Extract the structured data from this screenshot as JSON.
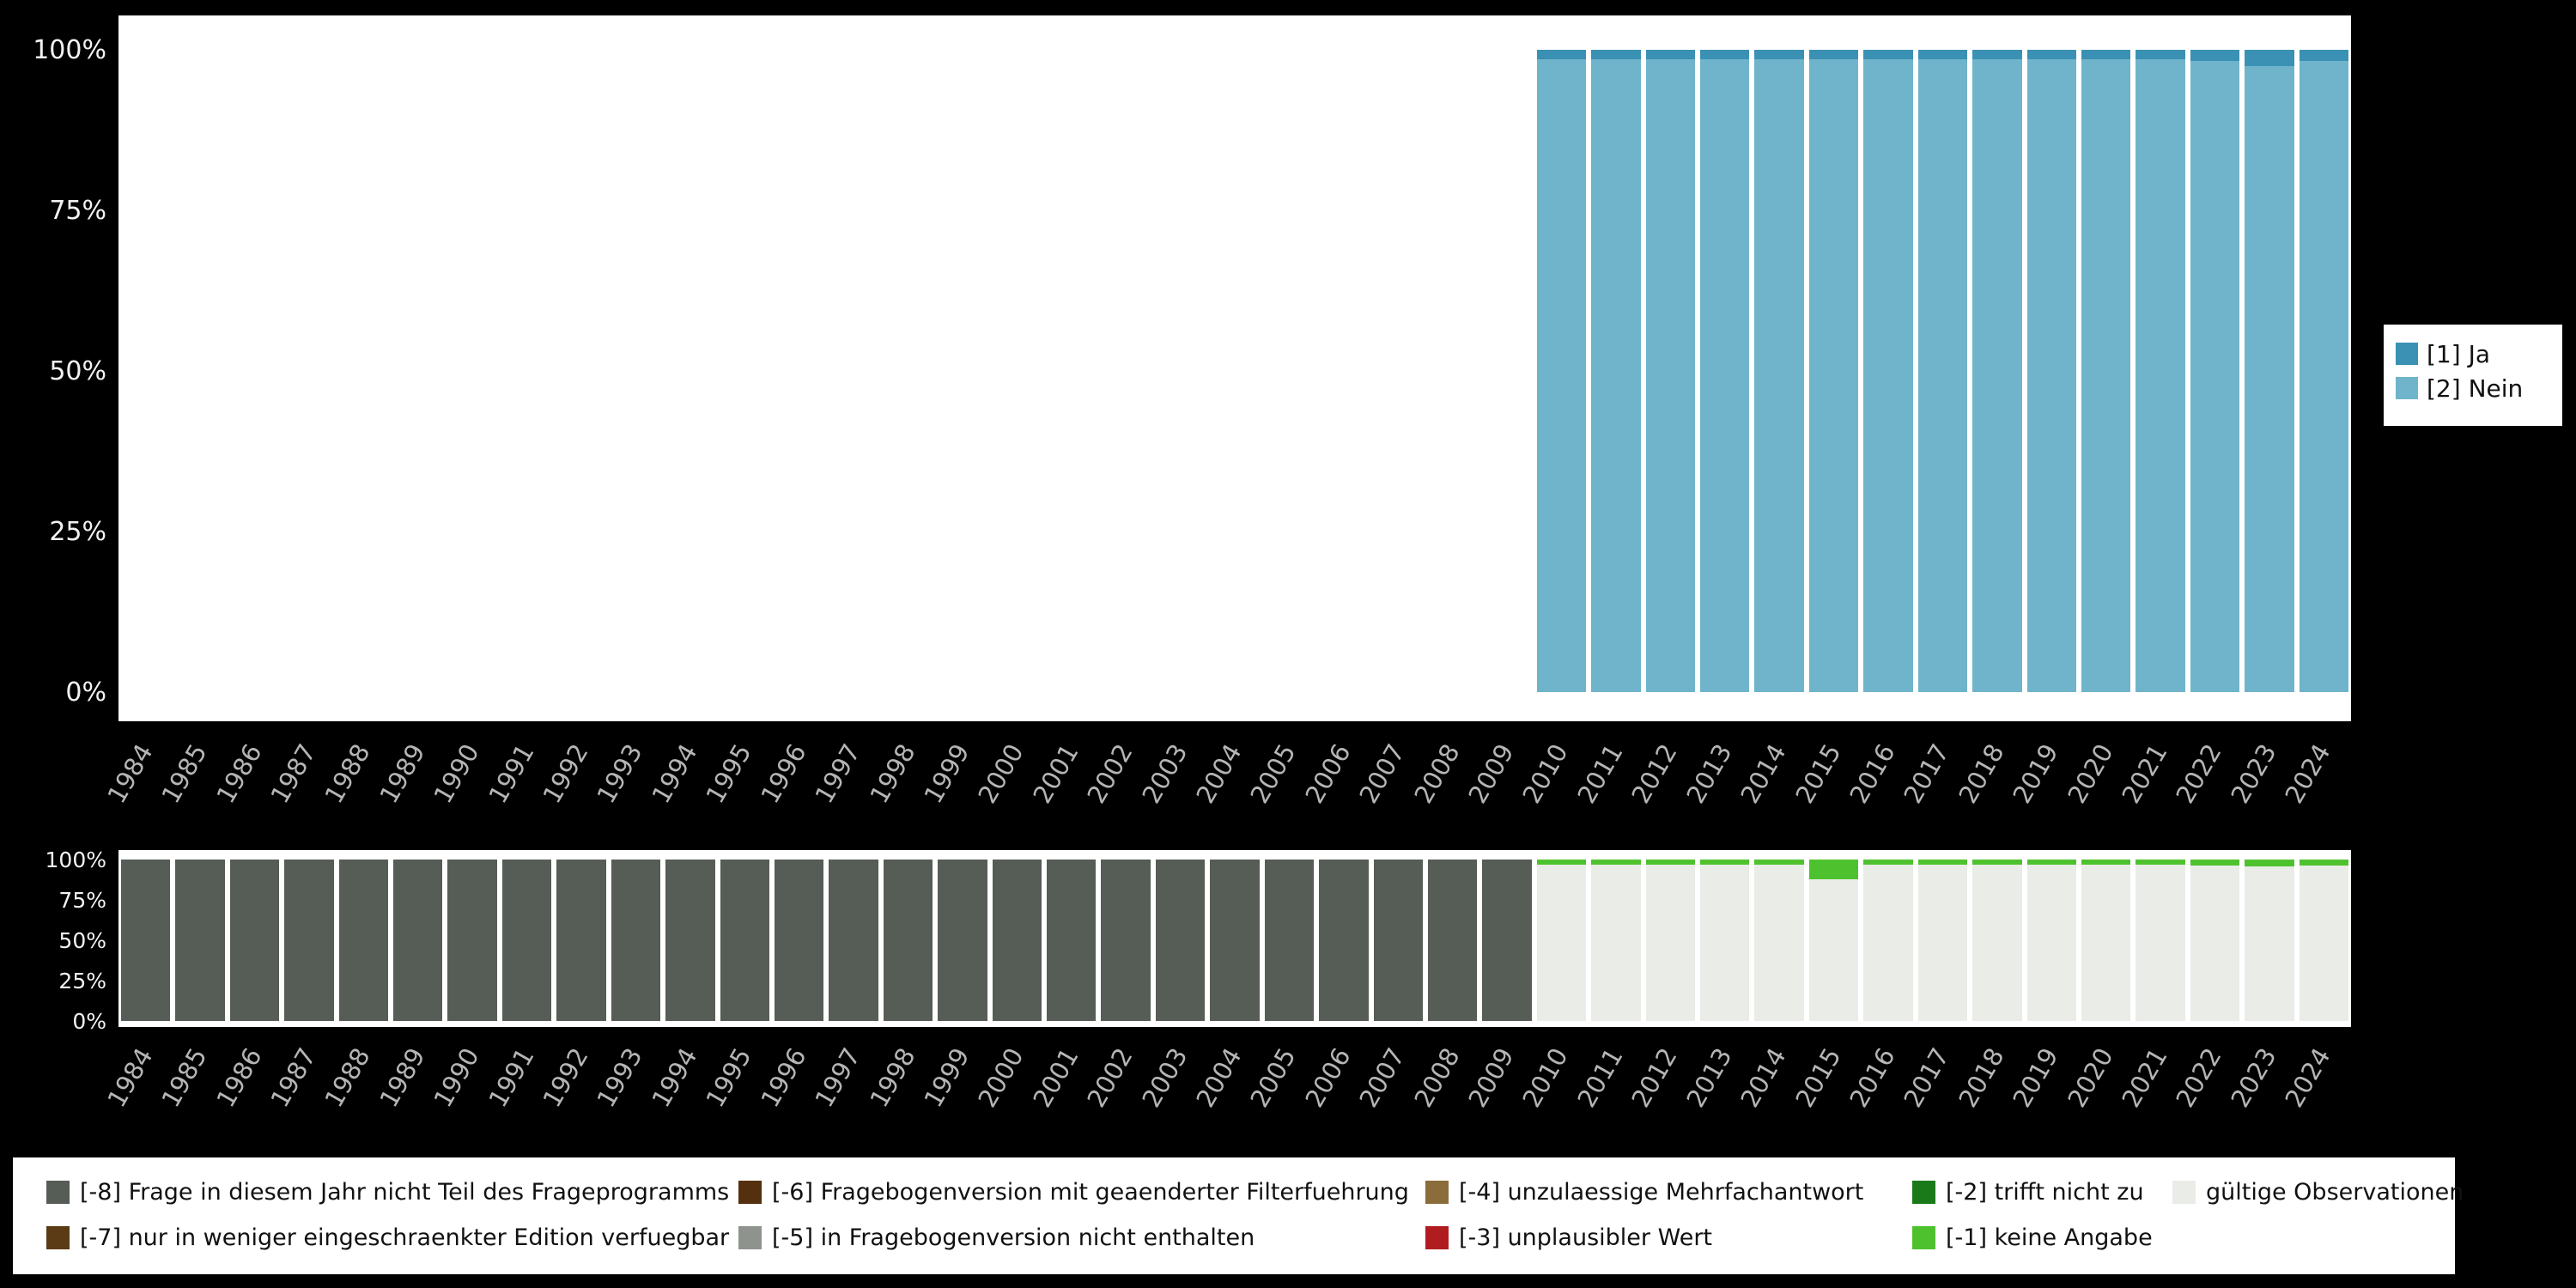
{
  "page": {
    "background": "#000000",
    "panel_background": "#ffffff",
    "axis_text_color": "#f2f2f2",
    "year_text_color": "#b5b5b5"
  },
  "chart_data": [
    {
      "name": "frequency-distribution-by-year",
      "type": "bar",
      "subtype": "stacked-percent",
      "title": "",
      "xlabel": "",
      "ylabel": "",
      "ylim": [
        0,
        100
      ],
      "grid": false,
      "legend_position": "right",
      "y_ticks": [
        "0%",
        "25%",
        "50%",
        "75%",
        "100%"
      ],
      "categories": [
        "1984",
        "1985",
        "1986",
        "1987",
        "1988",
        "1989",
        "1990",
        "1991",
        "1992",
        "1993",
        "1994",
        "1995",
        "1996",
        "1997",
        "1998",
        "1999",
        "2000",
        "2001",
        "2002",
        "2003",
        "2004",
        "2005",
        "2006",
        "2007",
        "2008",
        "2009",
        "2010",
        "2011",
        "2012",
        "2013",
        "2014",
        "2015",
        "2016",
        "2017",
        "2018",
        "2019",
        "2020",
        "2021",
        "2022",
        "2023",
        "2024"
      ],
      "series": [
        {
          "name": "[2] Nein",
          "key": "nein",
          "color": "#6fb4cb",
          "values": [
            null,
            null,
            null,
            null,
            null,
            null,
            null,
            null,
            null,
            null,
            null,
            null,
            null,
            null,
            null,
            null,
            null,
            null,
            null,
            null,
            null,
            null,
            null,
            null,
            null,
            null,
            98.5,
            98.5,
            98.5,
            98.5,
            98.5,
            98.5,
            98.5,
            98.5,
            98.5,
            98.5,
            98.5,
            98.5,
            98.2,
            97.5,
            98.2
          ]
        },
        {
          "name": "[1] Ja",
          "key": "ja",
          "color": "#3a91b4",
          "values": [
            null,
            null,
            null,
            null,
            null,
            null,
            null,
            null,
            null,
            null,
            null,
            null,
            null,
            null,
            null,
            null,
            null,
            null,
            null,
            null,
            null,
            null,
            null,
            null,
            null,
            null,
            1.5,
            1.5,
            1.5,
            1.5,
            1.5,
            1.5,
            1.5,
            1.5,
            1.5,
            1.5,
            1.5,
            1.5,
            1.8,
            2.5,
            1.8
          ]
        }
      ]
    },
    {
      "name": "missing-values-by-year",
      "type": "bar",
      "subtype": "stacked-percent",
      "title": "",
      "xlabel": "",
      "ylabel": "",
      "ylim": [
        0,
        100
      ],
      "grid": false,
      "legend_position": "bottom",
      "y_ticks": [
        "0%",
        "25%",
        "50%",
        "75%",
        "100%"
      ],
      "categories": [
        "1984",
        "1985",
        "1986",
        "1987",
        "1988",
        "1989",
        "1990",
        "1991",
        "1992",
        "1993",
        "1994",
        "1995",
        "1996",
        "1997",
        "1998",
        "1999",
        "2000",
        "2001",
        "2002",
        "2003",
        "2004",
        "2005",
        "2006",
        "2007",
        "2008",
        "2009",
        "2010",
        "2011",
        "2012",
        "2013",
        "2014",
        "2015",
        "2016",
        "2017",
        "2018",
        "2019",
        "2020",
        "2021",
        "2022",
        "2023",
        "2024"
      ],
      "series": [
        {
          "name": "[-8] Frage in diesem Jahr nicht Teil des Frageprogramms",
          "key": "neg8",
          "color": "#565c56",
          "values": [
            100,
            100,
            100,
            100,
            100,
            100,
            100,
            100,
            100,
            100,
            100,
            100,
            100,
            100,
            100,
            100,
            100,
            100,
            100,
            100,
            100,
            100,
            100,
            100,
            100,
            100,
            null,
            null,
            null,
            null,
            null,
            null,
            null,
            null,
            null,
            null,
            null,
            null,
            null,
            null,
            null
          ]
        },
        {
          "name": "gültige Observationen",
          "key": "valid",
          "color": "#e9ece7",
          "values": [
            null,
            null,
            null,
            null,
            null,
            null,
            null,
            null,
            null,
            null,
            null,
            null,
            null,
            null,
            null,
            null,
            null,
            null,
            null,
            null,
            null,
            null,
            null,
            null,
            null,
            null,
            96.8,
            96.8,
            96.8,
            96.8,
            96.6,
            88.0,
            96.8,
            96.8,
            96.8,
            96.8,
            96.8,
            96.6,
            96.5,
            95.8,
            96.5
          ]
        },
        {
          "name": "[-1] keine Angabe",
          "key": "neg1",
          "color": "#4ec22e",
          "values": [
            null,
            null,
            null,
            null,
            null,
            null,
            null,
            null,
            null,
            null,
            null,
            null,
            null,
            null,
            null,
            null,
            null,
            null,
            null,
            null,
            null,
            null,
            null,
            null,
            null,
            null,
            3.2,
            3.2,
            3.2,
            3.2,
            3.4,
            12.0,
            3.2,
            3.2,
            3.2,
            3.2,
            3.2,
            3.4,
            3.5,
            4.2,
            3.5
          ]
        }
      ]
    }
  ],
  "frequency_legend": {
    "items": [
      {
        "label": "[1] Ja",
        "color": "#3a91b4"
      },
      {
        "label": "[2] Nein",
        "color": "#6fb4cb"
      }
    ]
  },
  "missing_legend": {
    "items": [
      {
        "label": "[-8] Frage in diesem Jahr nicht Teil des Frageprogramms",
        "color": "#565c56"
      },
      {
        "label": "[-7] nur in weniger eingeschraenkter Edition verfuegbar",
        "color": "#5b3a16"
      },
      {
        "label": "[-6] Fragebogenversion mit geaenderter Filterfuehrung",
        "color": "#54300e"
      },
      {
        "label": "[-5] in Fragebogenversion nicht enthalten",
        "color": "#8e948d"
      },
      {
        "label": "[-4] unzulaessige Mehrfachantwort",
        "color": "#8a6d3b"
      },
      {
        "label": "[-3] unplausibler Wert",
        "color": "#b01c20"
      },
      {
        "label": "[-2] trifft nicht zu",
        "color": "#1a7a1a"
      },
      {
        "label": "[-1] keine Angabe",
        "color": "#4ec22e"
      },
      {
        "label": "gültige Observationen",
        "color": "#e9ece7"
      }
    ]
  }
}
